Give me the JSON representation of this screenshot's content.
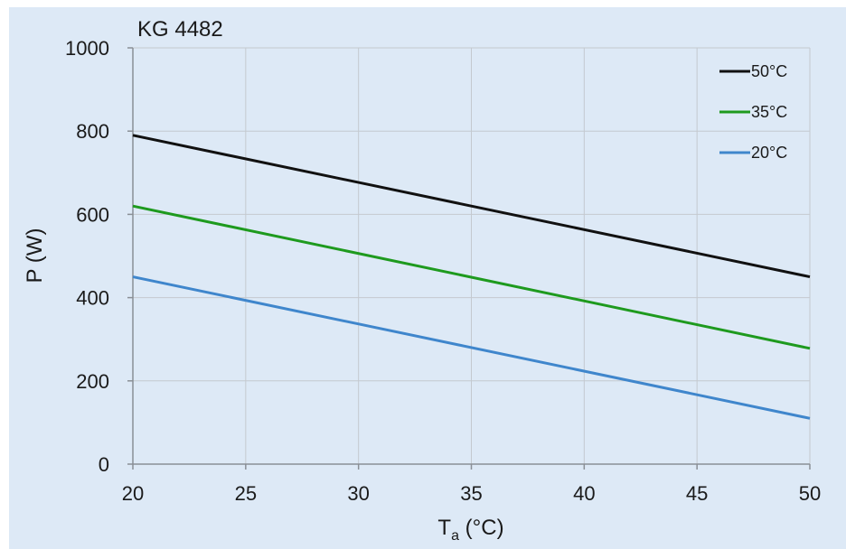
{
  "chart_data": {
    "type": "line",
    "title": "KG 4482",
    "xlabel": "T",
    "xlabel_sub": "a",
    "xlabel_unit": " (°C)",
    "ylabel": "P (W)",
    "xlim": [
      20,
      50
    ],
    "ylim": [
      0,
      1000
    ],
    "xticks": [
      20,
      25,
      30,
      35,
      40,
      45,
      50
    ],
    "yticks": [
      0,
      200,
      400,
      600,
      800,
      1000
    ],
    "grid": true,
    "legend_position": "top-right",
    "series": [
      {
        "name": "50°C",
        "color": "#111111",
        "x": [
          20,
          50
        ],
        "y": [
          790,
          450
        ]
      },
      {
        "name": "35°C",
        "color": "#1e9a1e",
        "x": [
          20,
          50
        ],
        "y": [
          620,
          278
        ]
      },
      {
        "name": "20°C",
        "color": "#3f86cc",
        "x": [
          20,
          50
        ],
        "y": [
          450,
          110
        ]
      }
    ],
    "background_color": "#dde9f6",
    "grid_color": "#c4c9cf"
  }
}
